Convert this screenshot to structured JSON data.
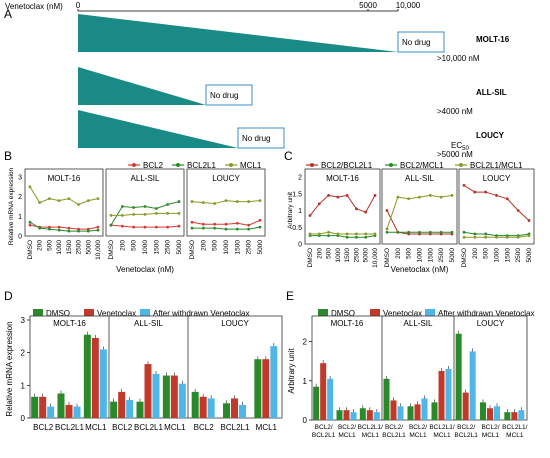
{
  "panel_a": {
    "letter": "A",
    "axis_label": "Venetoclax (nM)",
    "axis_ticks": [
      "0",
      "5000",
      "10,000"
    ],
    "rows": [
      {
        "cell_line": "MOLT-16",
        "box_label": "No drug",
        "ec50": ">10,000 nM",
        "ec50_value_nM": 10000
      },
      {
        "cell_line": "ALL-SIL",
        "box_label": "No drug",
        "ec50": ">4000 nM",
        "ec50_value_nM": 4000
      },
      {
        "cell_line": "LOUCY",
        "box_label": "No drug",
        "ec50": ">5000 nM",
        "ec50_value_nM": 5000
      }
    ],
    "ec50_label": "EC",
    "ec50_sub": "50",
    "colors": {
      "wedge": "#1a8a86",
      "box_border": "#3c8fc8"
    }
  },
  "chart_data": [
    {
      "id": "B",
      "type": "line",
      "letter": "B",
      "ylabel": "Relative mRNA expression",
      "xlabel": "Venetoclax (nM)",
      "ylim": [
        0,
        3
      ],
      "yticks": [
        "0",
        "1",
        "2",
        "3"
      ],
      "legend": {
        "placement": "top-right",
        "entries": [
          "BCL2",
          "BCL2L1",
          "MCL1"
        ]
      },
      "colors": {
        "BCL2": "#d63a33",
        "BCL2L1": "#2a8a2a",
        "MCL1": "#8a9a24"
      },
      "panels": [
        {
          "title": "MOLT-16",
          "x": [
            "DMSO",
            "200",
            "500",
            "1000",
            "1500",
            "2500",
            "5000",
            "10,000"
          ],
          "series": [
            {
              "name": "BCL2",
              "values": [
                0.55,
                0.45,
                0.45,
                0.45,
                0.4,
                0.35,
                0.35,
                0.45
              ]
            },
            {
              "name": "BCL2L1",
              "values": [
                0.7,
                0.4,
                0.35,
                0.3,
                0.25,
                0.25,
                0.25,
                0.3
              ]
            },
            {
              "name": "MCL1",
              "values": [
                2.5,
                1.7,
                1.9,
                1.8,
                1.9,
                1.6,
                1.8,
                1.9
              ]
            }
          ]
        },
        {
          "title": "ALL-SIL",
          "x": [
            "DMSO",
            "200",
            "500",
            "1000",
            "1500",
            "2500",
            "5000"
          ],
          "series": [
            {
              "name": "BCL2",
              "values": [
                0.55,
                0.5,
                0.45,
                0.45,
                0.45,
                0.45,
                0.5
              ]
            },
            {
              "name": "BCL2L1",
              "values": [
                0.55,
                1.5,
                1.45,
                1.5,
                1.4,
                1.6,
                1.75
              ]
            },
            {
              "name": "MCL1",
              "values": [
                1.05,
                1.05,
                1.1,
                1.1,
                1.15,
                1.15,
                1.15
              ]
            }
          ]
        },
        {
          "title": "LOUCY",
          "x": [
            "DMSO",
            "200",
            "500",
            "1000",
            "1500",
            "2500",
            "5000"
          ],
          "series": [
            {
              "name": "BCL2",
              "values": [
                0.7,
                0.6,
                0.6,
                0.6,
                0.65,
                0.55,
                0.8
              ]
            },
            {
              "name": "BCL2L1",
              "values": [
                0.4,
                0.4,
                0.4,
                0.35,
                0.35,
                0.35,
                0.45
              ]
            },
            {
              "name": "MCL1",
              "values": [
                1.75,
                1.7,
                1.65,
                1.8,
                1.75,
                1.75,
                1.8
              ]
            }
          ]
        }
      ]
    },
    {
      "id": "C",
      "type": "line",
      "letter": "C",
      "ylabel": "Arbitrary unit",
      "xlabel": "Venetoclax (nM)",
      "ylim": [
        0,
        2
      ],
      "yticks": [
        "0",
        "0.5",
        "1",
        "1.5",
        "2"
      ],
      "legend": {
        "placement": "top",
        "entries": [
          "BCL2/BCL2L1",
          "BCL2/MCL1",
          "BCL2L1/MCL1"
        ]
      },
      "colors": {
        "BCL2/BCL2L1": "#b8322a",
        "BCL2/MCL1": "#2a8a2a",
        "BCL2L1/MCL1": "#8a9a24"
      },
      "panels": [
        {
          "title": "MOLT-16",
          "x": [
            "DMSO",
            "200",
            "500",
            "1000",
            "1500",
            "2500",
            "5000",
            "10,000"
          ],
          "series": [
            {
              "name": "BCL2/BCL2L1",
              "values": [
                0.85,
                1.2,
                1.45,
                1.4,
                1.45,
                1.05,
                0.95,
                1.45
              ]
            },
            {
              "name": "BCL2/MCL1",
              "values": [
                0.25,
                0.25,
                0.25,
                0.25,
                0.2,
                0.2,
                0.2,
                0.25
              ]
            },
            {
              "name": "BCL2L1/MCL1",
              "values": [
                0.3,
                0.3,
                0.35,
                0.3,
                0.3,
                0.3,
                0.3,
                0.3
              ]
            }
          ]
        },
        {
          "title": "ALL-SIL",
          "x": [
            "DMSO",
            "200",
            "500",
            "1000",
            "1500",
            "2500",
            "5000"
          ],
          "series": [
            {
              "name": "BCL2/BCL2L1",
              "values": [
                1.0,
                0.35,
                0.3,
                0.3,
                0.3,
                0.3,
                0.3
              ]
            },
            {
              "name": "BCL2/MCL1",
              "values": [
                0.35,
                0.35,
                0.35,
                0.35,
                0.35,
                0.35,
                0.35
              ]
            },
            {
              "name": "BCL2L1/MCL1",
              "values": [
                0.45,
                1.4,
                1.35,
                1.4,
                1.45,
                1.4,
                1.45
              ]
            }
          ]
        },
        {
          "title": "LOUCY",
          "x": [
            "DMSO",
            "200",
            "500",
            "1000",
            "1500",
            "2500",
            "5000"
          ],
          "series": [
            {
              "name": "BCL2/BCL2L1",
              "values": [
                1.75,
                1.55,
                1.55,
                1.45,
                1.35,
                1.0,
                0.7
              ]
            },
            {
              "name": "BCL2/MCL1",
              "values": [
                0.35,
                0.3,
                0.3,
                0.25,
                0.25,
                0.25,
                0.3
              ]
            },
            {
              "name": "BCL2L1/MCL1",
              "values": [
                0.2,
                0.2,
                0.2,
                0.2,
                0.2,
                0.2,
                0.25
              ]
            }
          ]
        }
      ]
    },
    {
      "id": "D",
      "type": "bar",
      "letter": "D",
      "ylabel": "Relative mRNA expression",
      "ylim": [
        0,
        3
      ],
      "yticks": [
        "0",
        "1",
        "2",
        "3"
      ],
      "legend": {
        "placement": "top",
        "entries": [
          "DMSO",
          "Venetoclax",
          "After withdrawn Venetoclax"
        ]
      },
      "colors": {
        "DMSO": "#2a8a2a",
        "Venetoclax": "#c0392b",
        "After withdrawn Venetoclax": "#4fb6e8"
      },
      "groups": [
        {
          "title": "MOLT-16",
          "categories": [
            "BCL2",
            "BCL2L1",
            "MCL1"
          ],
          "values": [
            [
              0.65,
              0.65,
              0.35
            ],
            [
              0.75,
              0.4,
              0.35
            ],
            [
              2.55,
              2.45,
              2.1
            ]
          ]
        },
        {
          "title": "ALL-SIL",
          "categories": [
            "BCL2",
            "BCL2L1",
            "MCL1"
          ],
          "values": [
            [
              0.5,
              0.8,
              0.55
            ],
            [
              0.5,
              1.65,
              1.35
            ],
            [
              1.3,
              1.3,
              1.05
            ]
          ]
        },
        {
          "title": "LOUCY",
          "categories": [
            "BCL2",
            "BCL2L1",
            "MCL1"
          ],
          "values": [
            [
              0.8,
              0.65,
              0.6
            ],
            [
              0.45,
              0.6,
              0.4
            ],
            [
              1.8,
              1.8,
              2.2
            ]
          ]
        }
      ]
    },
    {
      "id": "E",
      "type": "bar",
      "letter": "E",
      "ylabel": "Arbitrary unit",
      "ylim": [
        0,
        2.5
      ],
      "yticks": [
        "0",
        "1",
        "2"
      ],
      "legend": {
        "placement": "top",
        "entries": [
          "DMSO",
          "Venetoclax",
          "After withdrawn Venetoclax"
        ]
      },
      "colors": {
        "DMSO": "#2a8a2a",
        "Venetoclax": "#c0392b",
        "After withdrawn Venetoclax": "#4fb6e8"
      },
      "groups": [
        {
          "title": "MOLT-16",
          "categories": [
            [
              "BCL2/",
              "BCL2L1"
            ],
            [
              "BCL2/",
              "MCL1"
            ],
            [
              "BCL2L1/",
              "MCL1"
            ]
          ],
          "values": [
            [
              0.85,
              1.45,
              1.05
            ],
            [
              0.25,
              0.25,
              0.2
            ],
            [
              0.3,
              0.25,
              0.2
            ]
          ]
        },
        {
          "title": "ALL-SIL",
          "categories": [
            [
              "BCL2/",
              "BCL2L1"
            ],
            [
              "BCL2/",
              "MCL1"
            ],
            [
              "BCL2L1/",
              "MCL1"
            ]
          ],
          "values": [
            [
              1.05,
              0.5,
              0.35
            ],
            [
              0.35,
              0.4,
              0.55
            ],
            [
              0.45,
              1.25,
              1.3
            ]
          ]
        },
        {
          "title": "LOUCY",
          "categories": [
            [
              "BCL2/",
              "BCL2L1"
            ],
            [
              "BCL2/",
              "MCL1"
            ],
            [
              "BCL2L1/",
              "MCL1"
            ]
          ],
          "values": [
            [
              2.2,
              0.7,
              1.75
            ],
            [
              0.45,
              0.3,
              0.35
            ],
            [
              0.2,
              0.2,
              0.25
            ]
          ]
        }
      ]
    }
  ]
}
